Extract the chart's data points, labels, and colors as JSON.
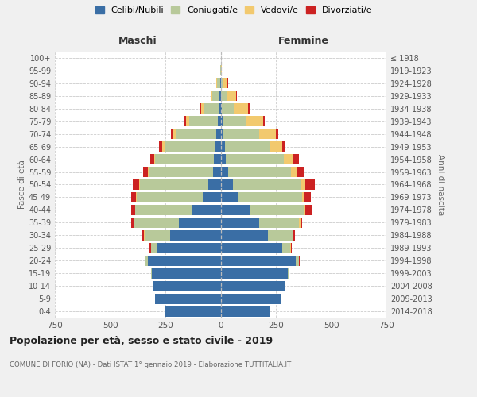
{
  "age_groups": [
    "0-4",
    "5-9",
    "10-14",
    "15-19",
    "20-24",
    "25-29",
    "30-34",
    "35-39",
    "40-44",
    "45-49",
    "50-54",
    "55-59",
    "60-64",
    "65-69",
    "70-74",
    "75-79",
    "80-84",
    "85-89",
    "90-94",
    "95-99",
    "100+"
  ],
  "birth_years": [
    "2014-2018",
    "2009-2013",
    "2004-2008",
    "1999-2003",
    "1994-1998",
    "1989-1993",
    "1984-1988",
    "1979-1983",
    "1974-1978",
    "1969-1973",
    "1964-1968",
    "1959-1963",
    "1954-1958",
    "1949-1953",
    "1944-1948",
    "1939-1943",
    "1934-1938",
    "1929-1933",
    "1924-1928",
    "1919-1923",
    "≤ 1918"
  ],
  "males": {
    "celibe": [
      250,
      295,
      305,
      310,
      330,
      285,
      230,
      190,
      130,
      80,
      55,
      35,
      30,
      25,
      18,
      12,
      8,
      4,
      2,
      0,
      0
    ],
    "coniugato": [
      0,
      0,
      0,
      5,
      10,
      30,
      115,
      200,
      255,
      300,
      310,
      290,
      265,
      230,
      185,
      130,
      70,
      35,
      15,
      2,
      0
    ],
    "vedovo": [
      0,
      0,
      0,
      0,
      0,
      1,
      1,
      2,
      2,
      3,
      3,
      5,
      5,
      8,
      10,
      15,
      10,
      5,
      2,
      0,
      0
    ],
    "divorziato": [
      0,
      0,
      0,
      1,
      2,
      5,
      8,
      12,
      18,
      22,
      28,
      22,
      18,
      15,
      12,
      8,
      5,
      2,
      0,
      0,
      0
    ]
  },
  "females": {
    "nubile": [
      220,
      270,
      290,
      305,
      340,
      280,
      215,
      175,
      130,
      80,
      55,
      35,
      25,
      18,
      10,
      8,
      5,
      3,
      2,
      0,
      0
    ],
    "coniugata": [
      0,
      0,
      0,
      5,
      15,
      35,
      110,
      180,
      245,
      290,
      310,
      285,
      260,
      205,
      165,
      105,
      55,
      28,
      12,
      2,
      0
    ],
    "vedova": [
      0,
      0,
      0,
      0,
      1,
      2,
      3,
      5,
      8,
      10,
      18,
      25,
      40,
      55,
      75,
      80,
      65,
      40,
      18,
      2,
      0
    ],
    "divorziata": [
      0,
      0,
      0,
      0,
      2,
      5,
      10,
      8,
      28,
      30,
      42,
      35,
      30,
      15,
      10,
      8,
      5,
      3,
      1,
      0,
      0
    ]
  },
  "colors": {
    "celibe": "#3a6ea5",
    "coniugato": "#b8c99a",
    "vedovo": "#f2c96e",
    "divorziato": "#cc2222"
  },
  "legend_labels": [
    "Celibi/Nubili",
    "Coniugati/e",
    "Vedovi/e",
    "Divorziati/e"
  ],
  "title": "Popolazione per età, sesso e stato civile - 2019",
  "subtitle": "COMUNE DI FORIO (NA) - Dati ISTAT 1° gennaio 2019 - Elaborazione TUTTITALIA.IT",
  "xlabel_left": "Maschi",
  "xlabel_right": "Femmine",
  "ylabel_left": "Fasce di età",
  "ylabel_right": "Anni di nascita",
  "xlim": 750,
  "bg_color": "#f0f0f0",
  "plot_bg": "#ffffff"
}
